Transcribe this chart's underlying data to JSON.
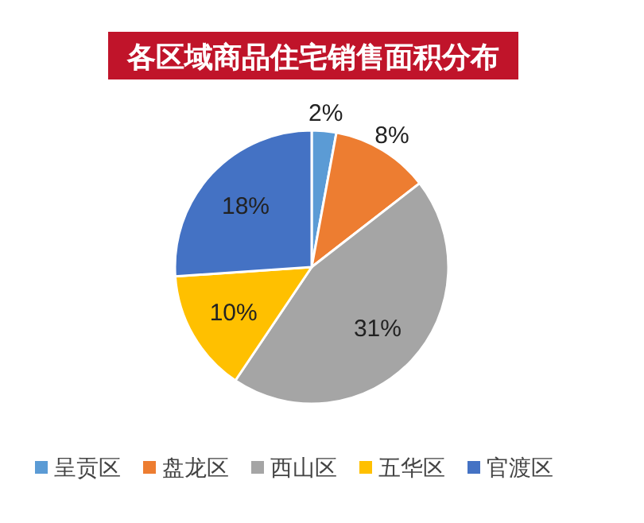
{
  "chart_data": {
    "type": "pie",
    "title": "各区域商品住宅销售面积分布",
    "categories": [
      "呈贡区",
      "盘龙区",
      "西山区",
      "五华区",
      "官渡区"
    ],
    "values": [
      2,
      8,
      31,
      10,
      18
    ],
    "value_labels": [
      "2%",
      "8%",
      "31%",
      "10%",
      "18%"
    ],
    "colors": [
      "#5b9bd5",
      "#ed7d31",
      "#a5a5a5",
      "#ffc000",
      "#4472c4"
    ],
    "legend": "bottom"
  }
}
